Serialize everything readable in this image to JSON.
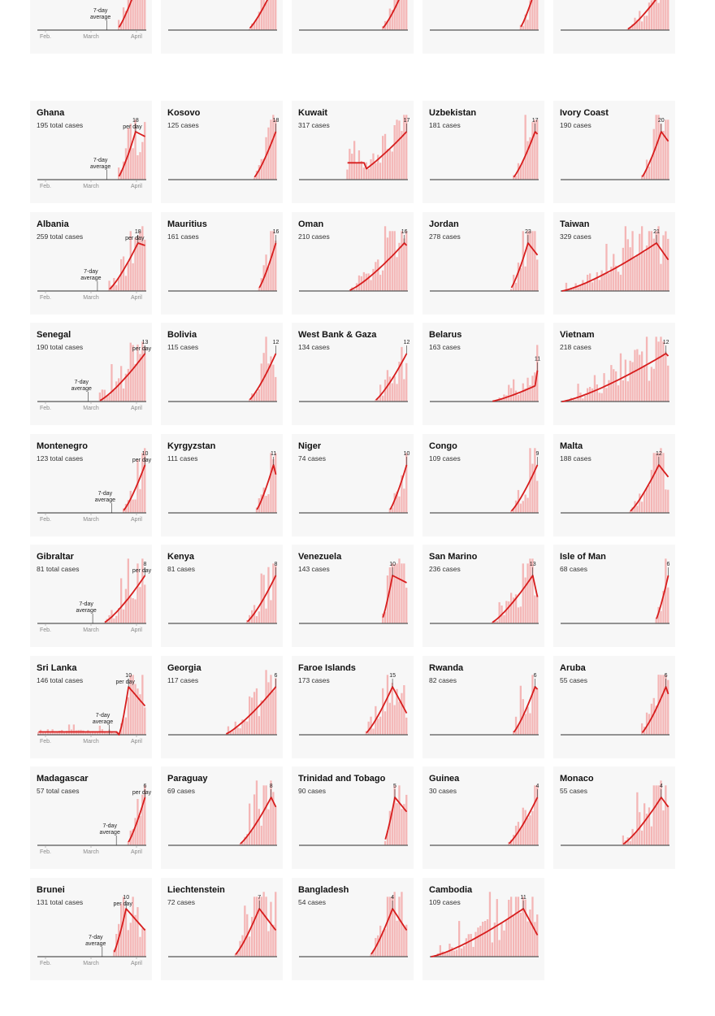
{
  "colors": {
    "bar": "#f4b6b6",
    "line": "#d71d1d",
    "baseline": "#555555",
    "panel_bg": "#f7f7f7"
  },
  "chart_data": {
    "type": "bar",
    "title": "",
    "x_ticks": [
      "Feb.",
      "March",
      "April"
    ],
    "annotations": {
      "per_day_label": "per day",
      "avg_label_line1": "7-day",
      "avg_label_line2": "average"
    },
    "panels": [
      {
        "name": "",
        "subtitle": "",
        "show_ticks": true,
        "start": 0.72,
        "peak": 0.93,
        "peak_value": "",
        "end_ratio": 0.8,
        "avg": true,
        "per_day": false,
        "top_row": true
      },
      {
        "name": "",
        "subtitle": "",
        "show_ticks": false,
        "start": 0.73,
        "peak": 1.0,
        "peak_value": "",
        "end_ratio": 1.0,
        "top_row": true
      },
      {
        "name": "",
        "subtitle": "",
        "show_ticks": false,
        "start": 0.75,
        "peak": 1.0,
        "peak_value": "",
        "end_ratio": 1.0,
        "top_row": true
      },
      {
        "name": "",
        "subtitle": "",
        "show_ticks": false,
        "start": 0.82,
        "peak": 1.0,
        "peak_value": "",
        "end_ratio": 1.0,
        "top_row": true
      },
      {
        "name": "",
        "subtitle": "",
        "show_ticks": false,
        "start": 0.6,
        "peak": 1.0,
        "peak_value": "",
        "end_ratio": 1.0,
        "top_row": true
      },
      {
        "name": "Ghana",
        "subtitle": "195 total cases",
        "show_ticks": true,
        "start": 0.72,
        "peak": 0.9,
        "peak_value": "18",
        "end_ratio": 0.9,
        "avg": true,
        "per_day": true
      },
      {
        "name": "Kosovo",
        "subtitle": "125 cases",
        "start": 0.78,
        "peak": 1.0,
        "peak_value": "18",
        "end_ratio": 1.0
      },
      {
        "name": "Kuwait",
        "subtitle": "317 cases",
        "start": 0.45,
        "peak": 1.0,
        "peak_value": "17",
        "end_ratio": 1.0,
        "early_hump": true
      },
      {
        "name": "Uzbekistan",
        "subtitle": "181 cases",
        "start": 0.75,
        "peak": 0.97,
        "peak_value": "17",
        "end_ratio": 0.95
      },
      {
        "name": "Ivory Coast",
        "subtitle": "190 cases",
        "start": 0.72,
        "peak": 0.93,
        "peak_value": "20",
        "end_ratio": 0.8
      },
      {
        "name": "Albania",
        "subtitle": "259 total cases",
        "show_ticks": true,
        "start": 0.65,
        "peak": 0.93,
        "peak_value": "18",
        "end_ratio": 0.95,
        "avg": true,
        "per_day": true
      },
      {
        "name": "Mauritius",
        "subtitle": "161 cases",
        "start": 0.82,
        "peak": 1.0,
        "peak_value": "16",
        "end_ratio": 1.0
      },
      {
        "name": "Oman",
        "subtitle": "210 cases",
        "start": 0.45,
        "peak": 0.97,
        "peak_value": "16",
        "end_ratio": 0.95
      },
      {
        "name": "Jordan",
        "subtitle": "278 cases",
        "start": 0.72,
        "peak": 0.9,
        "peak_value": "23",
        "end_ratio": 0.75
      },
      {
        "name": "Taiwan",
        "subtitle": "329 cases",
        "start": 0.0,
        "peak": 0.88,
        "peak_value": "21",
        "end_ratio": 0.65,
        "flat_start": true
      },
      {
        "name": "Senegal",
        "subtitle": "190 total cases",
        "show_ticks": true,
        "start": 0.55,
        "peak": 1.0,
        "peak_value": "13",
        "end_ratio": 1.0,
        "avg": true,
        "per_day": true
      },
      {
        "name": "Bolivia",
        "subtitle": "115 cases",
        "start": 0.72,
        "peak": 1.0,
        "peak_value": "12",
        "end_ratio": 1.0
      },
      {
        "name": "West Bank & Gaza",
        "subtitle": "134 cases",
        "start": 0.68,
        "peak": 1.0,
        "peak_value": "12",
        "end_ratio": 1.0,
        "dip": true
      },
      {
        "name": "Belarus",
        "subtitle": "163 cases",
        "start": 0.55,
        "peak": 1.0,
        "peak_value": "11",
        "end_ratio": 1.0,
        "low": true
      },
      {
        "name": "Vietnam",
        "subtitle": "218 cases",
        "start": 0.0,
        "peak": 0.97,
        "peak_value": "12",
        "end_ratio": 0.95,
        "flat_start": true
      },
      {
        "name": "Montenegro",
        "subtitle": "123 total cases",
        "show_ticks": true,
        "start": 0.78,
        "peak": 1.0,
        "peak_value": "10",
        "end_ratio": 1.0,
        "avg": true,
        "per_day": true
      },
      {
        "name": "Kyrgyzstan",
        "subtitle": "111 cases",
        "start": 0.8,
        "peak": 0.97,
        "peak_value": "11",
        "end_ratio": 0.8
      },
      {
        "name": "Niger",
        "subtitle": "74 cases",
        "start": 0.82,
        "peak": 1.0,
        "peak_value": "10",
        "end_ratio": 1.0
      },
      {
        "name": "Congo",
        "subtitle": "109 cases",
        "start": 0.72,
        "peak": 1.0,
        "peak_value": "9",
        "end_ratio": 1.0
      },
      {
        "name": "Malta",
        "subtitle": "188 cases",
        "start": 0.62,
        "peak": 0.9,
        "peak_value": "12",
        "end_ratio": 0.75
      },
      {
        "name": "Gibraltar",
        "subtitle": "81 total cases",
        "show_ticks": true,
        "start": 0.6,
        "peak": 1.0,
        "peak_value": "8",
        "end_ratio": 1.0,
        "avg": true,
        "per_day": true
      },
      {
        "name": "Kenya",
        "subtitle": "81 cases",
        "start": 0.7,
        "peak": 1.0,
        "peak_value": "8",
        "end_ratio": 1.0
      },
      {
        "name": "Venezuela",
        "subtitle": "143 cases",
        "start": 0.75,
        "peak": 0.85,
        "peak_value": "10",
        "end_ratio": 0.85
      },
      {
        "name": "San Marino",
        "subtitle": "236 cases",
        "start": 0.55,
        "peak": 0.95,
        "peak_value": "13",
        "end_ratio": 0.55
      },
      {
        "name": "Isle of Man",
        "subtitle": "68 cases",
        "start": 0.85,
        "peak": 1.0,
        "peak_value": "6",
        "end_ratio": 1.0
      },
      {
        "name": "Sri Lanka",
        "subtitle": "146 total cases",
        "show_ticks": true,
        "start": 0.75,
        "peak": 0.83,
        "peak_value": "10",
        "end_ratio": 0.6,
        "avg": true,
        "per_day": true,
        "flat_start": true
      },
      {
        "name": "Georgia",
        "subtitle": "117 cases",
        "start": 0.5,
        "peak": 1.0,
        "peak_value": "6",
        "end_ratio": 1.0
      },
      {
        "name": "Faroe Islands",
        "subtitle": "173 cases",
        "start": 0.6,
        "peak": 0.85,
        "peak_value": "15",
        "end_ratio": 0.45
      },
      {
        "name": "Rwanda",
        "subtitle": "82 cases",
        "start": 0.75,
        "peak": 0.97,
        "peak_value": "6",
        "end_ratio": 0.95
      },
      {
        "name": "Aruba",
        "subtitle": "55 cases",
        "start": 0.72,
        "peak": 0.97,
        "peak_value": "6",
        "end_ratio": 0.85
      },
      {
        "name": "Madagascar",
        "subtitle": "57 total cases",
        "show_ticks": true,
        "start": 0.82,
        "peak": 1.0,
        "peak_value": "6",
        "end_ratio": 1.0,
        "avg": true,
        "per_day": true
      },
      {
        "name": "Paraguay",
        "subtitle": "69 cases",
        "start": 0.65,
        "peak": 0.95,
        "peak_value": "8",
        "end_ratio": 0.8
      },
      {
        "name": "Trinidad and Tobago",
        "subtitle": "90 cases",
        "start": 0.78,
        "peak": 0.88,
        "peak_value": "5",
        "end_ratio": 0.7
      },
      {
        "name": "Guinea",
        "subtitle": "30 cases",
        "start": 0.7,
        "peak": 1.0,
        "peak_value": "4",
        "end_ratio": 1.0
      },
      {
        "name": "Monaco",
        "subtitle": "55 cases",
        "start": 0.55,
        "peak": 0.92,
        "peak_value": "4",
        "end_ratio": 0.8
      },
      {
        "name": "Brunei",
        "subtitle": "131 total cases",
        "show_ticks": true,
        "start": 0.68,
        "peak": 0.82,
        "peak_value": "10",
        "end_ratio": 0.55,
        "avg": true,
        "per_day": true
      },
      {
        "name": "Liechtenstein",
        "subtitle": "72 cases",
        "start": 0.6,
        "peak": 0.83,
        "peak_value": "7",
        "end_ratio": 0.55
      },
      {
        "name": "Bangladesh",
        "subtitle": "54 cases",
        "start": 0.65,
        "peak": 0.85,
        "peak_value": "4",
        "end_ratio": 0.55
      },
      {
        "name": "Cambodia",
        "subtitle": "109 cases",
        "start": 0.0,
        "peak": 0.85,
        "peak_value": "11",
        "end_ratio": 0.45,
        "flat_start": true
      }
    ]
  }
}
